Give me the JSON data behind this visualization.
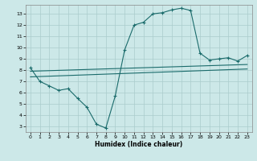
{
  "title": "",
  "xlabel": "Humidex (Indice chaleur)",
  "ylabel": "",
  "bg_color": "#cce8e8",
  "grid_color": "#aacccc",
  "line_color": "#1a6b6b",
  "x_ticks": [
    0,
    1,
    2,
    3,
    4,
    5,
    6,
    7,
    8,
    9,
    10,
    11,
    12,
    13,
    14,
    15,
    16,
    17,
    18,
    19,
    20,
    21,
    22,
    23
  ],
  "y_ticks": [
    3,
    4,
    5,
    6,
    7,
    8,
    9,
    10,
    11,
    12,
    13
  ],
  "ylim": [
    2.5,
    13.8
  ],
  "xlim": [
    -0.5,
    23.5
  ],
  "curve1_x": [
    0,
    1,
    2,
    3,
    4,
    5,
    6,
    7,
    8,
    9,
    10,
    11,
    12,
    13,
    14,
    15,
    16,
    17,
    18,
    19,
    20,
    21,
    22,
    23
  ],
  "curve1_y": [
    8.2,
    7.0,
    6.6,
    6.2,
    6.35,
    5.5,
    4.7,
    3.2,
    2.85,
    5.7,
    9.8,
    12.0,
    12.25,
    13.0,
    13.1,
    13.35,
    13.5,
    13.3,
    9.5,
    8.9,
    9.0,
    9.1,
    8.8,
    9.3
  ],
  "curve2_x": [
    0,
    23
  ],
  "curve2_y": [
    7.9,
    8.5
  ],
  "curve3_x": [
    0,
    23
  ],
  "curve3_y": [
    7.4,
    8.1
  ]
}
